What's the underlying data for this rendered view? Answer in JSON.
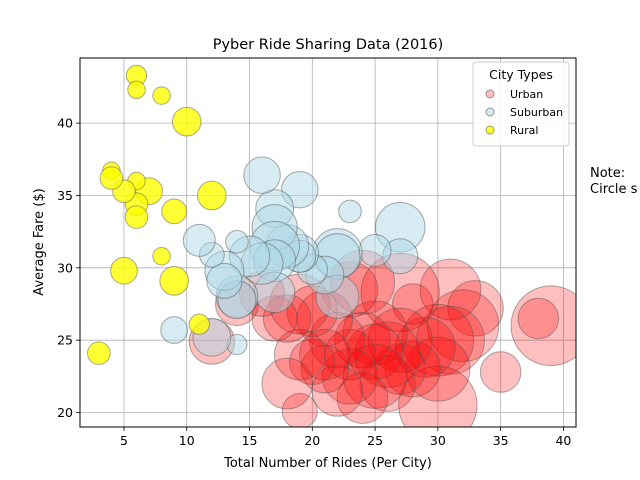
{
  "chart_data": {
    "type": "scatter",
    "title": "Pyber Ride Sharing Data (2016)",
    "xlabel": "Total Number of Rides (Per City)",
    "ylabel": "Average Fare ($)",
    "xlim": [
      1.5,
      41
    ],
    "ylim": [
      19,
      44.5
    ],
    "xticks": [
      5,
      10,
      15,
      20,
      25,
      30,
      35,
      40
    ],
    "yticks": [
      20,
      25,
      30,
      35,
      40
    ],
    "grid": true,
    "legend": {
      "title": "City Types",
      "placement": "top-right"
    },
    "series": [
      {
        "name": "Urban",
        "color": "#ff0000",
        "opacity": 0.25,
        "points": [
          [
            39,
            26,
            62
          ],
          [
            38,
            26.5,
            16
          ],
          [
            35,
            22.8,
            16
          ],
          [
            33,
            27.2,
            30
          ],
          [
            32,
            26,
            50
          ],
          [
            31,
            28.5,
            36
          ],
          [
            31,
            25,
            45
          ],
          [
            30,
            25,
            50
          ],
          [
            30,
            20.5,
            60
          ],
          [
            30,
            23,
            40
          ],
          [
            29,
            24.5,
            35
          ],
          [
            28,
            27.5,
            16
          ],
          [
            28,
            23,
            30
          ],
          [
            27,
            28.3,
            60
          ],
          [
            27,
            25,
            40
          ],
          [
            27,
            23,
            25
          ],
          [
            26,
            24,
            42
          ],
          [
            26,
            22,
            30
          ],
          [
            25,
            25.5,
            40
          ],
          [
            25,
            24.2,
            30
          ],
          [
            25,
            22.5,
            40
          ],
          [
            24,
            29,
            40
          ],
          [
            24,
            25,
            30
          ],
          [
            24,
            21,
            25
          ],
          [
            23,
            28.5,
            30
          ],
          [
            23,
            24,
            25
          ],
          [
            23,
            22.5,
            30
          ],
          [
            22,
            25,
            30
          ],
          [
            22,
            21.5,
            25
          ],
          [
            21,
            26.5,
            30
          ],
          [
            21,
            24,
            25
          ],
          [
            21,
            23,
            22
          ],
          [
            20,
            27,
            25
          ],
          [
            20,
            23.5,
            20
          ],
          [
            19,
            27.5,
            35
          ],
          [
            19,
            24,
            25
          ],
          [
            19,
            20.1,
            12
          ],
          [
            18,
            26.5,
            22
          ],
          [
            18,
            22,
            25
          ],
          [
            17,
            26.5,
            20
          ],
          [
            16,
            28.2,
            20
          ],
          [
            14,
            27.5,
            18
          ],
          [
            12,
            24.9,
            20
          ]
        ]
      },
      {
        "name": "Suburban",
        "color": "#add8e6",
        "opacity": 0.5,
        "points": [
          [
            27,
            32.8,
            24
          ],
          [
            27,
            30.8,
            12
          ],
          [
            25,
            31.2,
            10
          ],
          [
            23,
            33.9,
            5
          ],
          [
            22,
            31,
            24
          ],
          [
            22,
            30.8,
            20
          ],
          [
            22,
            28,
            18
          ],
          [
            21,
            29.5,
            14
          ],
          [
            20,
            29.9,
            9
          ],
          [
            19,
            35.4,
            13
          ],
          [
            19,
            31,
            14
          ],
          [
            19,
            30.8,
            10
          ],
          [
            18,
            31.5,
            18
          ],
          [
            17,
            34.1,
            14
          ],
          [
            17,
            32.8,
            20
          ],
          [
            17,
            31.5,
            24
          ],
          [
            17,
            30.5,
            17
          ],
          [
            17,
            28.3,
            16
          ],
          [
            16,
            36.4,
            13
          ],
          [
            16,
            30.3,
            17
          ],
          [
            15,
            30.8,
            16
          ],
          [
            14,
            31.8,
            5
          ],
          [
            14,
            28,
            17
          ],
          [
            14,
            27.8,
            14
          ],
          [
            14,
            24.7,
            4
          ],
          [
            13,
            29.8,
            15
          ],
          [
            13,
            29.1,
            12
          ],
          [
            12,
            30.9,
            6
          ],
          [
            12,
            25.2,
            14
          ],
          [
            11,
            31.9,
            10
          ],
          [
            9,
            25.7,
            7
          ]
        ]
      },
      {
        "name": "Rural",
        "color": "#ffff00",
        "opacity": 0.8,
        "points": [
          [
            12,
            35,
            8
          ],
          [
            11,
            26.1,
            4
          ],
          [
            10,
            40.1,
            8
          ],
          [
            9,
            33.9,
            6
          ],
          [
            9,
            29.1,
            8
          ],
          [
            8,
            41.9,
            3
          ],
          [
            8,
            30.8,
            3
          ],
          [
            7,
            35.3,
            7
          ],
          [
            6,
            43.3,
            4
          ],
          [
            6,
            42.3,
            3
          ],
          [
            6,
            36,
            3
          ],
          [
            6,
            34.4,
            5
          ],
          [
            6,
            33.5,
            5
          ],
          [
            5,
            35.3,
            5
          ],
          [
            5,
            29.8,
            7
          ],
          [
            4,
            36.7,
            3
          ],
          [
            4,
            36.2,
            5
          ],
          [
            3,
            24.1,
            5
          ]
        ]
      }
    ]
  },
  "note": {
    "line1": "Note:",
    "line2": "Circle s"
  }
}
